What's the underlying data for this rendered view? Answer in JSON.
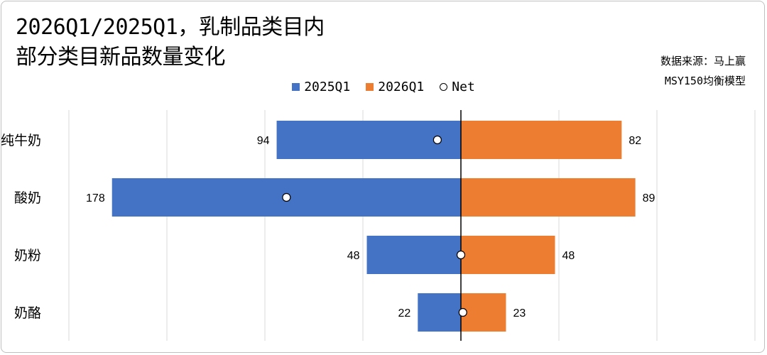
{
  "title_line1": "2026Q1/2025Q1，乳制品类目内",
  "title_line2": "部分类目新品数量变化",
  "source_line1": "数据来源：马上赢",
  "source_line2": "MSY150均衡模型",
  "colors": {
    "s2025": "#4472C4",
    "s2026": "#ED7D31",
    "net": "#ffffff"
  },
  "chart_data": {
    "type": "bar",
    "orientation": "horizontal-diverging",
    "categories": [
      "纯牛奶",
      "酸奶",
      "奶粉",
      "奶酪"
    ],
    "series": [
      {
        "name": "2025Q1",
        "values": [
          94,
          178,
          48,
          22
        ],
        "direction": "left"
      },
      {
        "name": "2026Q1",
        "values": [
          82,
          89,
          48,
          23
        ],
        "direction": "right"
      },
      {
        "name": "Net",
        "values": [
          -12,
          -89,
          0,
          1
        ],
        "marker": "circle"
      }
    ],
    "xlim": [
      -180,
      150
    ],
    "grid": true,
    "legend": "top-center"
  }
}
